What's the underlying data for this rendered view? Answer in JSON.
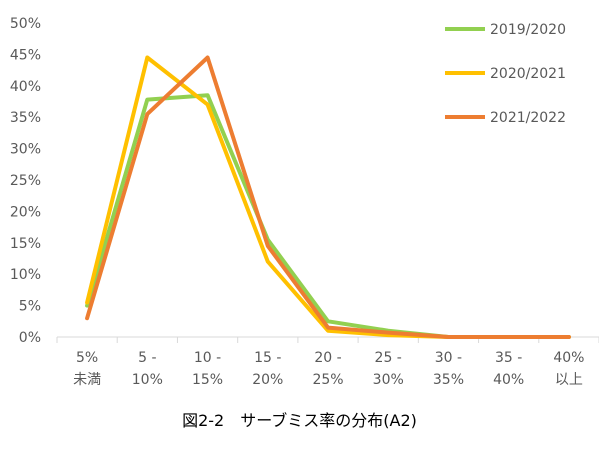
{
  "chart_data": {
    "type": "line",
    "title": "図2-2　サーブミス率の分布(A2)",
    "xlabel": "",
    "ylabel": "",
    "categories": [
      [
        "5%",
        "未満"
      ],
      [
        "5 -",
        "10%"
      ],
      [
        "10 -",
        "15%"
      ],
      [
        "15 -",
        "20%"
      ],
      [
        "20 -",
        "25%"
      ],
      [
        "25 -",
        "30%"
      ],
      [
        "30 -",
        "35%"
      ],
      [
        "35 -",
        "40%"
      ],
      [
        "40%",
        "以上"
      ]
    ],
    "y_ticks": [
      "0%",
      "5%",
      "10%",
      "15%",
      "20%",
      "25%",
      "30%",
      "35%",
      "40%",
      "45%",
      "50%"
    ],
    "ylim": [
      0,
      50
    ],
    "grid": false,
    "legend_position": "top-right",
    "series": [
      {
        "name": "2019/2020",
        "color": "#92D050",
        "values": [
          5.0,
          37.8,
          38.5,
          15.5,
          2.5,
          1.0,
          0.0,
          0.0,
          0.0
        ]
      },
      {
        "name": "2020/2021",
        "color": "#FFC000",
        "values": [
          5.5,
          44.5,
          37.0,
          12.0,
          1.0,
          0.3,
          0.0,
          0.0,
          0.0
        ]
      },
      {
        "name": "2021/2022",
        "color": "#ED7D31",
        "values": [
          3.0,
          35.5,
          44.5,
          14.5,
          1.5,
          0.7,
          0.0,
          0.0,
          0.0
        ]
      }
    ]
  }
}
